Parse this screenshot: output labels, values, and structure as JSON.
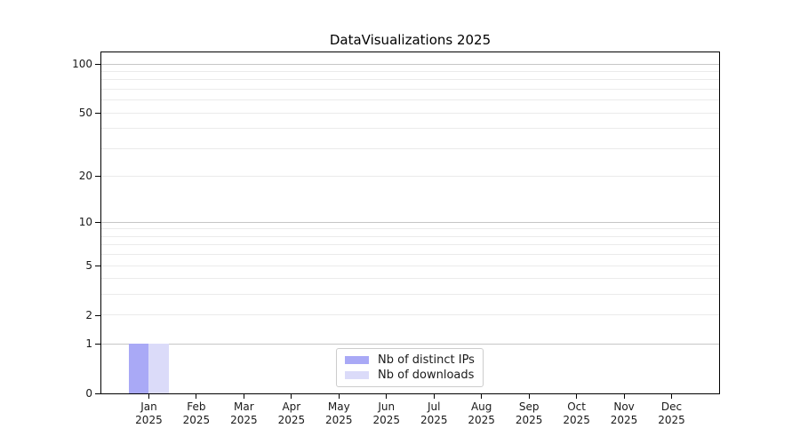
{
  "title": "DataVisualizations 2025",
  "chart_data": {
    "type": "bar",
    "title": "DataVisualizations 2025",
    "categories": [
      "Jan",
      "Feb",
      "Mar",
      "Apr",
      "May",
      "Jun",
      "Jul",
      "Aug",
      "Sep",
      "Oct",
      "Nov",
      "Dec"
    ],
    "year_label": "2025",
    "series": [
      {
        "name": "Nb of distinct IPs",
        "color": "#a9a9f6",
        "values": [
          1,
          0,
          0,
          0,
          0,
          0,
          0,
          0,
          0,
          0,
          0,
          0
        ]
      },
      {
        "name": "Nb of downloads",
        "color": "#dbdbf9",
        "values": [
          1,
          0,
          0,
          0,
          0,
          0,
          0,
          0,
          0,
          0,
          0,
          0
        ]
      }
    ],
    "yscale": "log1p",
    "ylim": [
      0,
      118
    ],
    "y_major_ticks": [
      0,
      1,
      2,
      5,
      10,
      20,
      50,
      100
    ],
    "y_strong_gridlines": [
      1,
      10,
      100
    ],
    "y_minor_gridlines": [
      2,
      3,
      4,
      5,
      6,
      7,
      8,
      9,
      20,
      30,
      40,
      50,
      60,
      70,
      80,
      90
    ],
    "grid": true,
    "legend_position": "lower center"
  },
  "colors": {
    "background": "#ffffff",
    "spine": "#000000",
    "grid_strong": "#c6c6c6",
    "grid_minor": "#ebebeb",
    "text": "#1a1a1a",
    "legend_border": "#cccccc"
  }
}
